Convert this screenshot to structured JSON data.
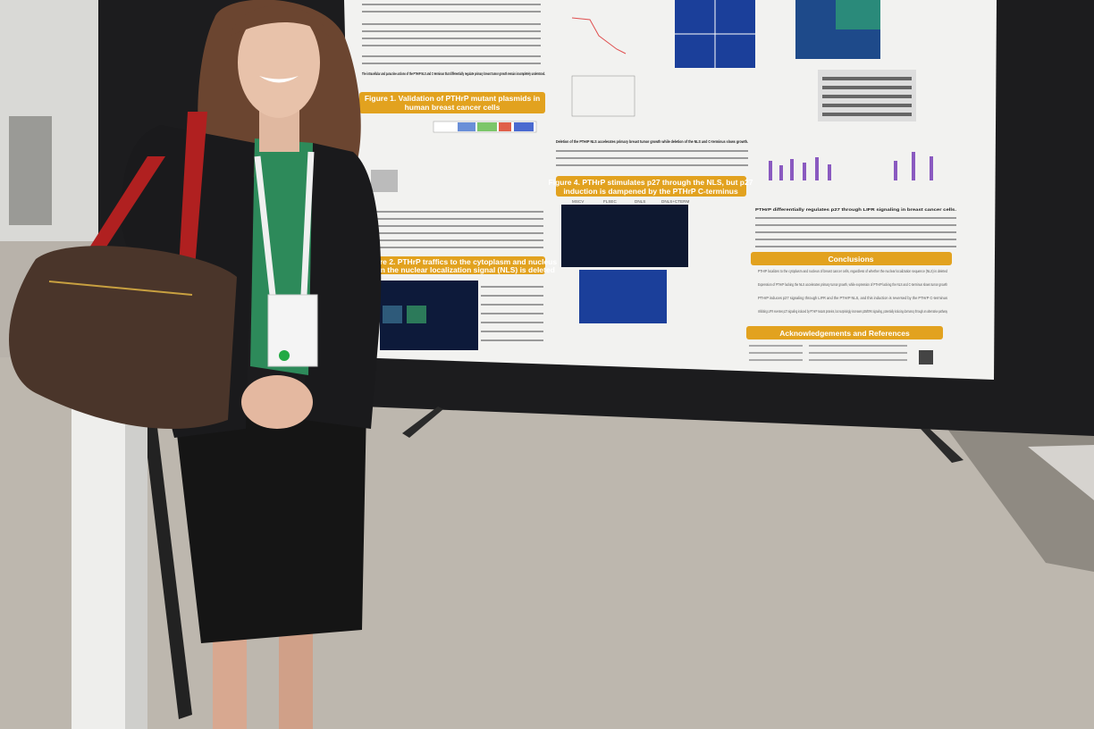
{
  "poster": {
    "intro_bold": "The intracellular and paracrine actions of the PTHrP NLS and C-terminus that differentially regulate primary breast tumor growth remain incompletely understood.",
    "figure1_title_line1": "Figure 1. Validation of PTHrP mutant plasmids in",
    "figure1_title_line2": "human breast cancer cells",
    "figure2_title_line1": "Figure 2. PTHrP traffics to the cytoplasm and nucleus",
    "figure2_title_line2": "when the nuclear localization signal (NLS) is deleted",
    "figure3_caption_bold": "Deletion of the PTHrP NLS accelerates primary breast tumor growth while deletion of the NLS and C-terminus slows growth.",
    "figure4_title_line1": "Figure 4. PTHrP stimulates p27 through the NLS, but p27",
    "figure4_title_line2": "induction is dampened by the PTHrP C-terminus",
    "figure5_caption_bold": "PTHrP differentially regulates p27 through LIFR signaling in breast cancer cells.",
    "conclusions_title": "Conclusions",
    "conclusions": [
      "PTHrP localizes to the cytoplasm and nucleus of breast cancer cells, regardless of whether the nuclear localization sequence (NLS) is deleted",
      "Expression of PTHrP lacking the NLS accelerates primary tumor growth, while expression of PTHrP lacking the NLS and C-terminus slows tumor growth",
      "PTHrP induces p27 signaling through LIFR and the PTHrP NLS, and this induction is reversed by the PTHrP C-terminus",
      "Inhibiting LIFR reverses p27 signaling induced by PTHrP mutant proteins, but surprisingly increases p38/ERK signaling, potentially inducing dormancy through an alternative pathway"
    ],
    "acknowledgements_title": "Acknowledgements and References",
    "panel_labels": [
      "MSCV",
      "FLSEC",
      "DNLS",
      "DNLS+CTERM"
    ]
  },
  "colors": {
    "banner": "#e2a21f",
    "backdrop": "#1c1c1e",
    "floor": "#b8b2aa",
    "microscopy_blue": "#1b3f9a"
  }
}
